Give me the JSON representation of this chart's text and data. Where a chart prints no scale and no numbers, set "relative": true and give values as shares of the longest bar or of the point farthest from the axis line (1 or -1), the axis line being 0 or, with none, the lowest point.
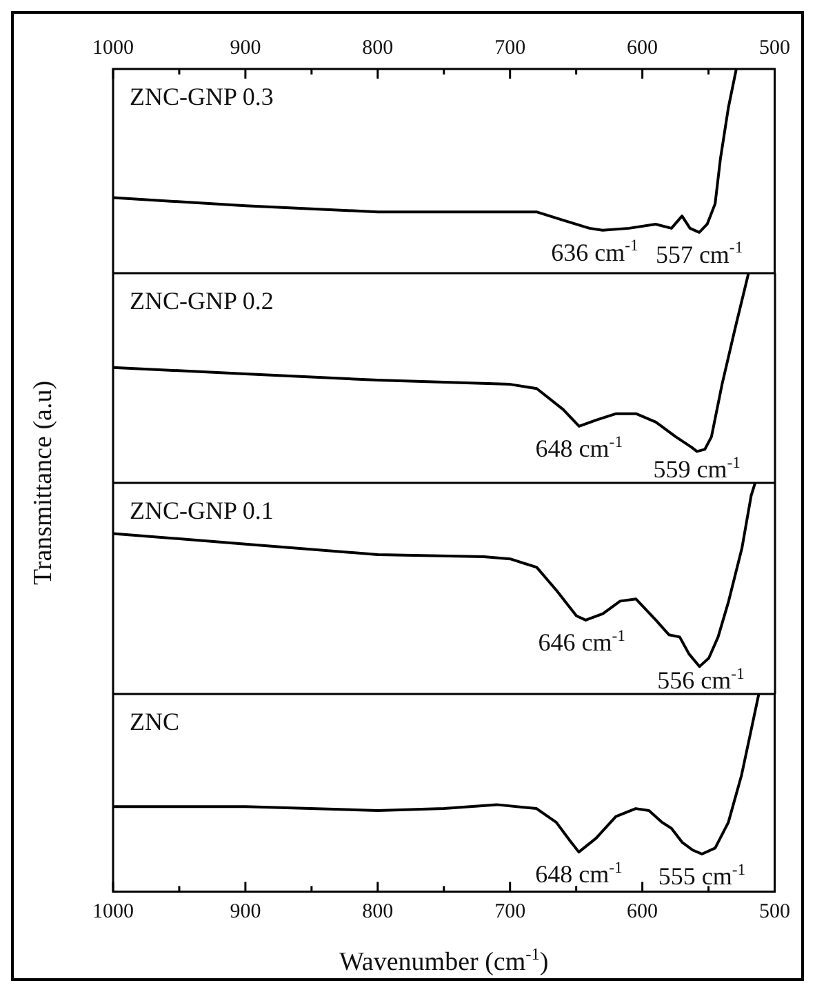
{
  "chart_data": [
    {
      "type": "line",
      "title": "ZNC-GNP 0.3",
      "relative": true,
      "xlim": [
        1000,
        500
      ],
      "xticks": [
        1000,
        {
          "value": 950,
          "label": null
        },
        900,
        {
          "value": 850,
          "label": null
        },
        800,
        {
          "value": 750,
          "label": null
        },
        700,
        {
          "value": 650,
          "label": null
        },
        600,
        {
          "value": 550,
          "label": null
        },
        500
      ],
      "series": [
        {
          "color": "#000000",
          "x": [
            1000,
            900,
            800,
            700,
            680,
            660,
            640,
            630,
            610,
            590,
            578,
            570,
            564,
            557,
            551,
            545,
            541,
            535,
            529
          ],
          "values": [
            0.37,
            0.33,
            0.3,
            0.3,
            0.3,
            0.26,
            0.22,
            0.21,
            0.22,
            0.24,
            0.22,
            0.28,
            0.22,
            0.2,
            0.24,
            0.34,
            0.56,
            0.81,
            1.0
          ]
        }
      ],
      "annotations": [
        {
          "text": "636 cm$^{-1}$",
          "x": 636,
          "y": 0.21
        },
        {
          "text": "557 cm$^{-1}$",
          "x": 557,
          "y": 0.2
        }
      ]
    },
    {
      "type": "line",
      "title": "ZNC-GNP 0.2",
      "relative": true,
      "xlim": [
        1000,
        500
      ],
      "xticks": [
        1000,
        900,
        800,
        700,
        600,
        500
      ],
      "tick_labels": false,
      "ylabel": "Transmittance (a.u)",
      "series": [
        {
          "color": "#000000",
          "x": [
            1000,
            900,
            800,
            700,
            680,
            660,
            648,
            635,
            620,
            605,
            590,
            575,
            563,
            559,
            553,
            548,
            540,
            530,
            520
          ],
          "values": [
            0.55,
            0.52,
            0.49,
            0.47,
            0.45,
            0.35,
            0.27,
            0.3,
            0.33,
            0.33,
            0.29,
            0.22,
            0.17,
            0.15,
            0.16,
            0.22,
            0.47,
            0.74,
            1.0
          ]
        }
      ],
      "annotations": [
        {
          "text": "648 cm$^{-1}$",
          "x": 648,
          "y": 0.27
        },
        {
          "text": "559 cm$^{-1}$",
          "x": 559,
          "y": 0.15
        }
      ]
    },
    {
      "type": "line",
      "title": "ZNC-GNP 0.1",
      "relative": true,
      "xlim": [
        1000,
        500
      ],
      "xticks": [
        1000,
        900,
        800,
        700,
        600,
        500
      ],
      "tick_labels": false,
      "series": [
        {
          "color": "#000000",
          "x": [
            1000,
            900,
            800,
            720,
            700,
            680,
            665,
            650,
            643,
            630,
            617,
            605,
            590,
            580,
            572,
            565,
            557,
            550,
            543,
            535,
            525,
            518,
            515
          ],
          "values": [
            0.76,
            0.71,
            0.66,
            0.65,
            0.64,
            0.6,
            0.49,
            0.37,
            0.35,
            0.38,
            0.44,
            0.45,
            0.35,
            0.28,
            0.27,
            0.19,
            0.13,
            0.17,
            0.27,
            0.44,
            0.69,
            0.94,
            1.0
          ]
        }
      ],
      "annotations": [
        {
          "text": "646 cm$^{-1}$",
          "x": 646,
          "y": 0.35
        },
        {
          "text": "556 cm$^{-1}$",
          "x": 556,
          "y": 0.13
        }
      ]
    },
    {
      "type": "line",
      "title": "ZNC",
      "relative": true,
      "xlim": [
        1000,
        500
      ],
      "xticks": [
        1000,
        {
          "value": 950,
          "label": null
        },
        900,
        {
          "value": 850,
          "label": null
        },
        800,
        {
          "value": 750,
          "label": null
        },
        700,
        {
          "value": 650,
          "label": null
        },
        600,
        {
          "value": 550,
          "label": null
        },
        500
      ],
      "xlabel": "Wavenumber (cm$^{-1}$)",
      "series": [
        {
          "color": "#000000",
          "x": [
            1000,
            900,
            800,
            750,
            710,
            680,
            665,
            655,
            648,
            635,
            620,
            605,
            595,
            585,
            578,
            570,
            562,
            555,
            545,
            535,
            525,
            518,
            512
          ],
          "values": [
            0.43,
            0.43,
            0.41,
            0.42,
            0.44,
            0.42,
            0.35,
            0.26,
            0.2,
            0.27,
            0.38,
            0.42,
            0.41,
            0.35,
            0.32,
            0.25,
            0.21,
            0.19,
            0.22,
            0.35,
            0.59,
            0.81,
            1.0
          ]
        }
      ],
      "annotations": [
        {
          "text": "648 cm$^{-1}$",
          "x": 648,
          "y": 0.2
        },
        {
          "text": "555 cm$^{-1}$",
          "x": 555,
          "y": 0.19
        }
      ]
    }
  ]
}
